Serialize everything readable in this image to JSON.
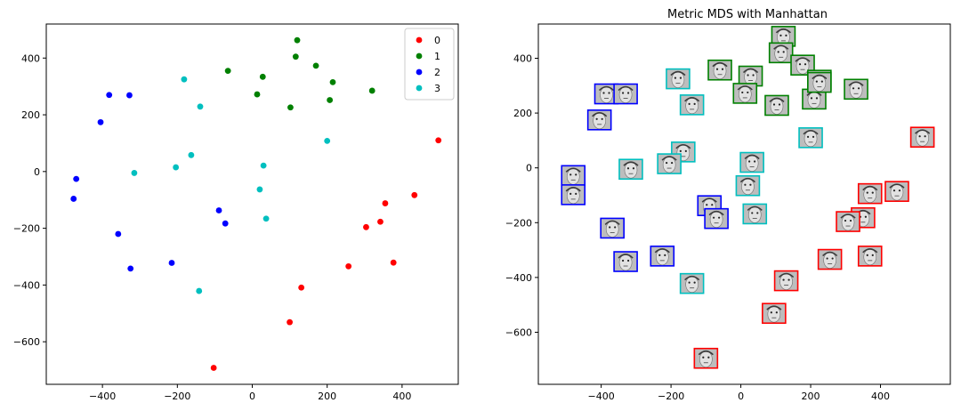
{
  "colors": {
    "0": "#ff0000",
    "1": "#008000",
    "2": "#0000ff",
    "3": "#00bfbf"
  },
  "chart_data": [
    {
      "type": "scatter",
      "title": "",
      "xlabel": "",
      "ylabel": "",
      "xlim": [
        -550,
        550
      ],
      "ylim": [
        -750,
        520
      ],
      "xticks": [
        -400,
        -200,
        0,
        200,
        400
      ],
      "yticks": [
        -600,
        -400,
        -200,
        0,
        200,
        400
      ],
      "xtick_labels": [
        "−400",
        "−200",
        "0",
        "200",
        "400"
      ],
      "ytick_labels": [
        "−600",
        "−400",
        "−200",
        "0",
        "200",
        "400"
      ],
      "legend": {
        "position": "top-right",
        "labels": [
          "0",
          "1",
          "2",
          "3"
        ]
      },
      "series": [
        {
          "name": "0",
          "color": "#ff0000",
          "points": [
            [
              497,
              110
            ],
            [
              433,
              -83
            ],
            [
              355,
              -112
            ],
            [
              342,
              -177
            ],
            [
              304,
              -196
            ],
            [
              377,
              -321
            ],
            [
              257,
              -334
            ],
            [
              131,
              -409
            ],
            [
              100,
              -531
            ],
            [
              -103,
              -692
            ]
          ]
        },
        {
          "name": "1",
          "color": "#008000",
          "points": [
            [
              120,
              463
            ],
            [
              116,
              405
            ],
            [
              170,
              373
            ],
            [
              -65,
              355
            ],
            [
              28,
              334
            ],
            [
              215,
              315
            ],
            [
              13,
              272
            ],
            [
              320,
              285
            ],
            [
              207,
              252
            ],
            [
              102,
              226
            ]
          ]
        },
        {
          "name": "2",
          "color": "#0000ff",
          "points": [
            [
              -382,
              270
            ],
            [
              -328,
              269
            ],
            [
              -405,
              174
            ],
            [
              -470,
              -26
            ],
            [
              -477,
              -96
            ],
            [
              -89,
              -137
            ],
            [
              -72,
              -183
            ],
            [
              -358,
              -220
            ],
            [
              -215,
              -322
            ],
            [
              -325,
              -342
            ]
          ]
        },
        {
          "name": "3",
          "color": "#00bfbf",
          "points": [
            [
              -182,
              325
            ],
            [
              -139,
              229
            ],
            [
              200,
              108
            ],
            [
              -163,
              58
            ],
            [
              -204,
              15
            ],
            [
              30,
              21
            ],
            [
              -315,
              -5
            ],
            [
              20,
              -63
            ],
            [
              37,
              -166
            ],
            [
              -142,
              -421
            ]
          ]
        }
      ]
    },
    {
      "type": "scatter",
      "title": "Metric MDS with Manhattan",
      "xlabel": "",
      "ylabel": "",
      "xlim": [
        -580,
        600
      ],
      "ylim": [
        -790,
        525
      ],
      "xticks": [
        -400,
        -200,
        0,
        200,
        400
      ],
      "yticks": [
        -600,
        -400,
        -200,
        0,
        200,
        400
      ],
      "xtick_labels": [
        "−400",
        "−200",
        "0",
        "200",
        "400"
      ],
      "ytick_labels": [
        "−600",
        "−400",
        "−200",
        "0",
        "200",
        "400"
      ],
      "marker": "face-thumbnail",
      "series": [
        {
          "name": "0",
          "color": "#ff0000",
          "points": [
            [
              520,
              112
            ],
            [
              447,
              -86
            ],
            [
              370,
              -94
            ],
            [
              350,
              -182
            ],
            [
              307,
              -196
            ],
            [
              370,
              -322
            ],
            [
              255,
              -334
            ],
            [
              130,
              -412
            ],
            [
              95,
              -531
            ],
            [
              -100,
              -695
            ]
          ]
        },
        {
          "name": "1",
          "color": "#008000",
          "points": [
            [
              122,
              480
            ],
            [
              115,
              420
            ],
            [
              177,
              375
            ],
            [
              -60,
              357
            ],
            [
              28,
              335
            ],
            [
              225,
              320
            ],
            [
              12,
              272
            ],
            [
              330,
              287
            ],
            [
              210,
              251
            ],
            [
              103,
              228
            ],
            [
              225,
              312
            ]
          ]
        },
        {
          "name": "2",
          "color": "#0000ff",
          "points": [
            [
              -385,
              270
            ],
            [
              -330,
              270
            ],
            [
              -405,
              175
            ],
            [
              -480,
              -28
            ],
            [
              -480,
              -98
            ],
            [
              -90,
              -138
            ],
            [
              -70,
              -185
            ],
            [
              -368,
              -220
            ],
            [
              -225,
              -322
            ],
            [
              -330,
              -342
            ]
          ]
        },
        {
          "name": "3",
          "color": "#00bfbf",
          "points": [
            [
              -180,
              325
            ],
            [
              -140,
              230
            ],
            [
              200,
              110
            ],
            [
              -165,
              58
            ],
            [
              -205,
              15
            ],
            [
              32,
              20
            ],
            [
              -315,
              -5
            ],
            [
              20,
              -65
            ],
            [
              40,
              -168
            ],
            [
              -140,
              -422
            ]
          ]
        }
      ]
    }
  ]
}
